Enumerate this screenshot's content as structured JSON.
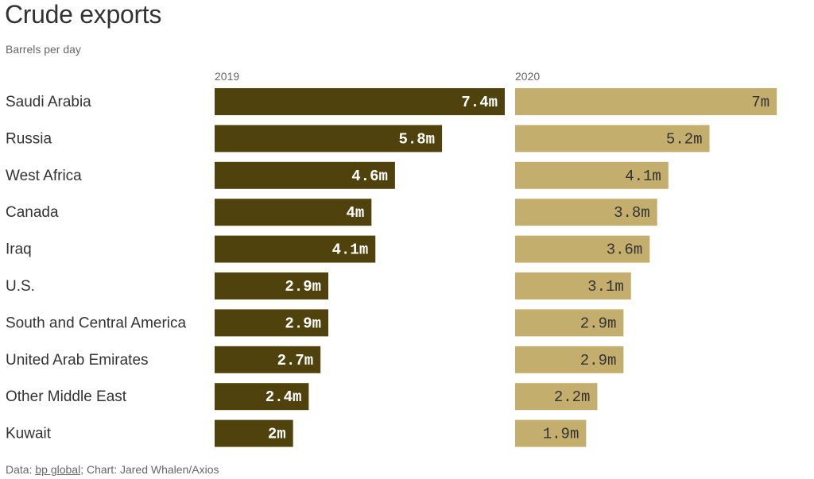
{
  "chart_data": {
    "type": "bar",
    "title": "Crude exports",
    "subtitle": "Barrels per day",
    "categories": [
      "Saudi Arabia",
      "Russia",
      "West Africa",
      "Canada",
      "Iraq",
      "U.S.",
      "South and Central America",
      "United Arab Emirates",
      "Other Middle East",
      "Kuwait"
    ],
    "series": [
      {
        "name": "2019",
        "color": "#4f420c",
        "values": [
          7.4,
          5.8,
          4.6,
          4,
          4.1,
          2.9,
          2.9,
          2.7,
          2.4,
          2
        ],
        "labels": [
          "7.4m",
          "5.8m",
          "4.6m",
          "4m",
          "4.1m",
          "2.9m",
          "2.9m",
          "2.7m",
          "2.4m",
          "2m"
        ]
      },
      {
        "name": "2020",
        "color": "#c4ae6e",
        "values": [
          7,
          5.2,
          4.1,
          3.8,
          3.6,
          3.1,
          2.9,
          2.9,
          2.2,
          1.9
        ],
        "labels": [
          "7m",
          "5.2m",
          "4.1m",
          "3.8m",
          "3.6m",
          "3.1m",
          "2.9m",
          "2.9m",
          "2.2m",
          "1.9m"
        ]
      }
    ],
    "xlim": [
      0,
      7.4
    ],
    "grid": false,
    "legend": "none"
  },
  "footer": {
    "prefix": "Data: ",
    "source_link": "bp global",
    "suffix": "; Chart: Jared Whalen/Axios"
  }
}
